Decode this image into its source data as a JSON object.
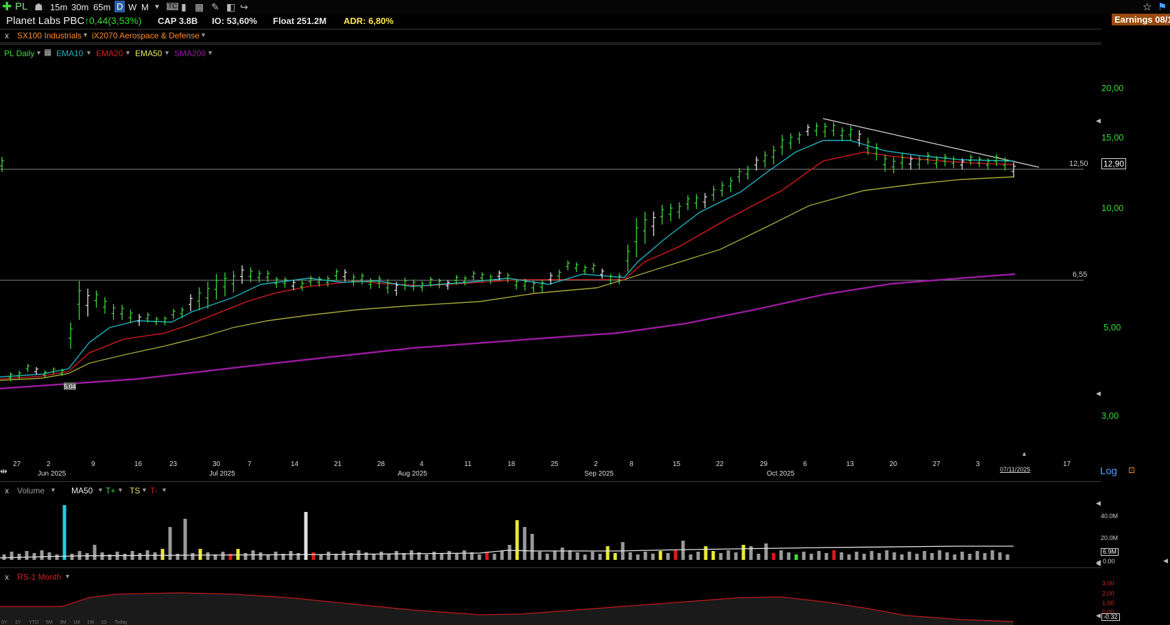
{
  "toolbar": {
    "add_icon": "plus-icon",
    "symbol": "PL",
    "timeframes": [
      "15m",
      "30m",
      "65m",
      "D",
      "W",
      "M"
    ],
    "active_timeframe": "D",
    "icons": [
      "chart-type-icon",
      "bar-style-icon",
      "grid-icon",
      "pencil-icon",
      "layout-icon",
      "share-icon",
      "star-icon",
      "flag-icon"
    ]
  },
  "info": {
    "company": "Planet Labs PBC",
    "change": "↑0,44(3,53%)",
    "cap": "CAP 3.8B",
    "io": "IO: 53,60%",
    "float": "Float 251.2M",
    "adr": "ADR: 6,80%",
    "earnings": "Earnings 08/1"
  },
  "groups": {
    "close": "x",
    "industry1": "SX100 Industrials",
    "industry2": "iX2070 Aerospace & Defense"
  },
  "indicators": {
    "ticker": "PL Daily",
    "ema10": "EMA10",
    "ema20": "EMA20",
    "ema50": "EMA50",
    "sma200": "SMA200"
  },
  "price_axis": {
    "labels": [
      "20,00",
      "15,00",
      "10,00",
      "5,00",
      "3,00"
    ],
    "current_price": "12,90",
    "line_upper": "12,50",
    "line_lower": "6,55",
    "low_marker": "5.04",
    "scale": "Log"
  },
  "date_axis": {
    "days": [
      "27",
      "2",
      "9",
      "16",
      "23",
      "30",
      "7",
      "14",
      "21",
      "28",
      "4",
      "11",
      "18",
      "25",
      "2",
      "8",
      "15",
      "22",
      "29",
      "6",
      "13",
      "20",
      "27",
      "3",
      "17"
    ],
    "months": [
      "Jun 2025",
      "Jul 2025",
      "Aug 2025",
      "Sep 2025",
      "Oct 2025"
    ],
    "current_date": "07/11/2025"
  },
  "volume_panel": {
    "close": "x",
    "title": "Volume",
    "ma": "MA50",
    "t_plus": "T+",
    "ts": "TS",
    "t_minus": "T-",
    "labels": [
      "40.0M",
      "20.0M",
      "0.00"
    ],
    "current": "6.9M"
  },
  "rs_panel": {
    "close": "x",
    "title": "RS-1 Month",
    "labels": [
      "3,00",
      "2,00",
      "1,00",
      "0,00"
    ],
    "current": "-0.32",
    "range_buttons": [
      "5Y",
      "1Y",
      "YTD",
      "6M",
      "3M",
      "1M",
      "1W",
      "1D",
      "Today"
    ]
  },
  "colors": {
    "up_bar": "#3ddc3d",
    "ema10": "#1fb3c4",
    "ema20": "#c0181a",
    "ema50": "#a8a83a",
    "sma200": "#9b1ba0",
    "price_text": "#33dd33",
    "earnings_bg": "#9a4a10"
  }
}
